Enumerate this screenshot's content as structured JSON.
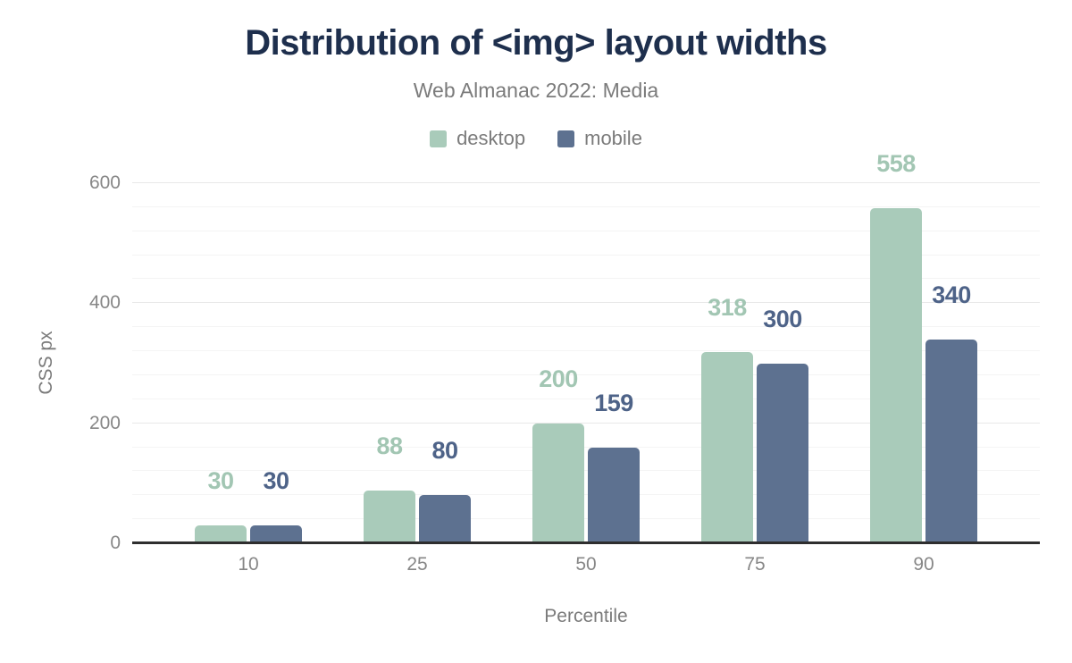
{
  "chart_data": {
    "type": "bar",
    "title": "Distribution of <img> layout widths",
    "subtitle": "Web Almanac 2022: Media",
    "xlabel": "Percentile",
    "ylabel": "CSS px",
    "categories": [
      "10",
      "25",
      "50",
      "75",
      "90"
    ],
    "series": [
      {
        "name": "desktop",
        "values": [
          30,
          88,
          200,
          318,
          558
        ],
        "color": "#a9cbba",
        "label_color": "#a2c6b3"
      },
      {
        "name": "mobile",
        "values": [
          30,
          80,
          159,
          300,
          340
        ],
        "color": "#5d7190",
        "label_color": "#4e6388"
      }
    ],
    "ylim": [
      0,
      600
    ],
    "yticks": [
      0,
      200,
      400,
      600
    ],
    "grid": {
      "major_step": 200,
      "minor_step": 40
    },
    "legend_position": "top",
    "legend_entries": [
      "desktop",
      "mobile"
    ]
  },
  "colors": {
    "title": "#1e2f4d",
    "subtitle": "#7b7b7b",
    "legend_text": "#7b7b7b",
    "axis_tick_text": "#878787",
    "axis_title_text": "#7b7b7b",
    "grid_major": "#e8e8e8",
    "grid_minor": "#f4f4f4",
    "axis_line": "#2e2e2e",
    "background": "#ffffff"
  }
}
